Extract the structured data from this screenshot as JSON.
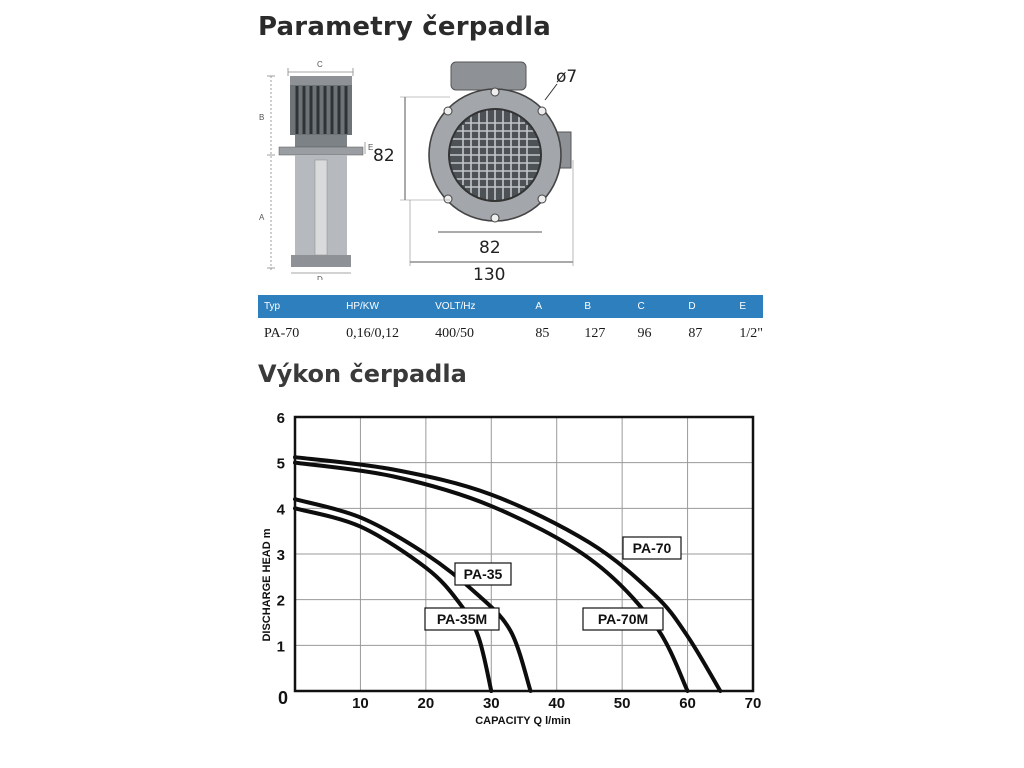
{
  "page": {
    "title": "Parametry čerpadla",
    "chart_heading": "Výkon čerpadla"
  },
  "drawings": {
    "side_labels": {
      "c": "C",
      "b": "B",
      "e": "E",
      "a": "A",
      "d": "D"
    },
    "front_labels": {
      "hole": "ø7",
      "height": "82",
      "inner_width": "82",
      "outer_width": "130"
    }
  },
  "specs_table": {
    "headers": [
      "Typ",
      "HP/KW",
      "VOLT/Hz",
      "A",
      "B",
      "C",
      "D",
      "E"
    ],
    "rows": [
      [
        "PA-70",
        "0,16/0,12",
        "400/50",
        "85",
        "127",
        "96",
        "87",
        "1/2\""
      ]
    ],
    "header_color": "#2e7fbd"
  },
  "chart_data": {
    "type": "line",
    "title": "",
    "xlabel": "CAPACITY Q l/min",
    "ylabel": "DISCHARGE HEAD m",
    "xlim": [
      0,
      70
    ],
    "ylim": [
      0,
      6
    ],
    "x_ticks": [
      "0",
      "10",
      "20",
      "30",
      "40",
      "50",
      "60",
      "70"
    ],
    "y_ticks": [
      "1",
      "2",
      "3",
      "4",
      "5",
      "6"
    ],
    "grid": true,
    "series": [
      {
        "name": "PA-35M",
        "points": [
          [
            0,
            4.0
          ],
          [
            10,
            3.6
          ],
          [
            20,
            2.7
          ],
          [
            25,
            1.95
          ],
          [
            28,
            1.2
          ],
          [
            30,
            0
          ]
        ]
      },
      {
        "name": "PA-35",
        "points": [
          [
            0,
            4.2
          ],
          [
            10,
            3.8
          ],
          [
            20,
            3.0
          ],
          [
            28,
            2.1
          ],
          [
            33,
            1.3
          ],
          [
            36,
            0
          ]
        ]
      },
      {
        "name": "PA-70M",
        "points": [
          [
            0,
            5.0
          ],
          [
            15,
            4.7
          ],
          [
            30,
            4.05
          ],
          [
            45,
            2.9
          ],
          [
            55,
            1.45
          ],
          [
            60,
            0
          ]
        ]
      },
      {
        "name": "PA-70",
        "points": [
          [
            0,
            5.12
          ],
          [
            15,
            4.85
          ],
          [
            30,
            4.3
          ],
          [
            45,
            3.25
          ],
          [
            55,
            2.1
          ],
          [
            60,
            1.2
          ],
          [
            65,
            0
          ]
        ]
      }
    ]
  }
}
